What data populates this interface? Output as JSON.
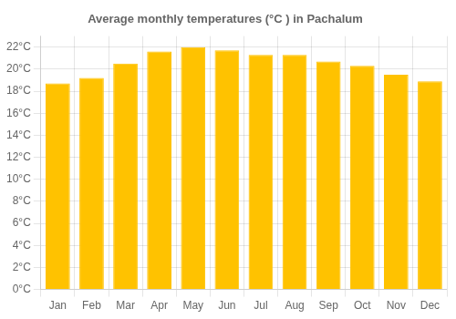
{
  "chart_data": {
    "type": "bar",
    "title": "Average monthly temperatures (°C ) in Pachalum",
    "categories": [
      "Jan",
      "Feb",
      "Mar",
      "Apr",
      "May",
      "Jun",
      "Jul",
      "Aug",
      "Sep",
      "Oct",
      "Nov",
      "Dec"
    ],
    "values": [
      18.7,
      19.2,
      20.5,
      21.6,
      22.0,
      21.7,
      21.3,
      21.3,
      20.7,
      20.3,
      19.5,
      18.9
    ],
    "color": "#FFC200",
    "ylim": [
      0,
      23
    ],
    "yticks": [
      {
        "value": 0,
        "label": "0°C"
      },
      {
        "value": 2,
        "label": "2°C"
      },
      {
        "value": 4,
        "label": "4°C"
      },
      {
        "value": 6,
        "label": "6°C"
      },
      {
        "value": 8,
        "label": "8°C"
      },
      {
        "value": 10,
        "label": "10°C"
      },
      {
        "value": 12,
        "label": "12°C"
      },
      {
        "value": 14,
        "label": "14°C"
      },
      {
        "value": 16,
        "label": "16°C"
      },
      {
        "value": 18,
        "label": "18°C"
      },
      {
        "value": 20,
        "label": "20°C"
      },
      {
        "value": 22,
        "label": "22°C"
      }
    ],
    "grid": true
  }
}
